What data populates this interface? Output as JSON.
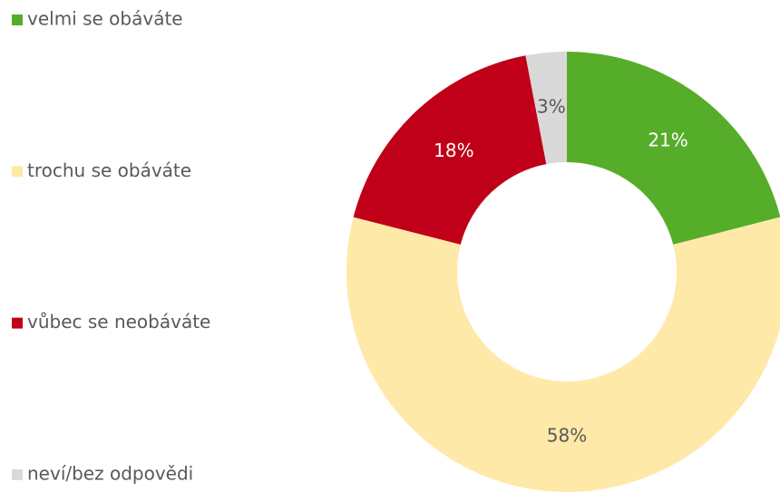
{
  "chart_data": {
    "type": "donut",
    "categories": [
      "velmi se obáváte",
      "trochu se obáváte",
      "vůbec se neobáváte",
      "neví/bez odpovědi"
    ],
    "values": [
      21,
      58,
      18,
      3
    ],
    "value_labels": [
      "21%",
      "58%",
      "18%",
      "3%"
    ],
    "colors": [
      "#56ad29",
      "#fee9a8",
      "#c00018",
      "#d9d9d9"
    ],
    "legend": "left"
  }
}
